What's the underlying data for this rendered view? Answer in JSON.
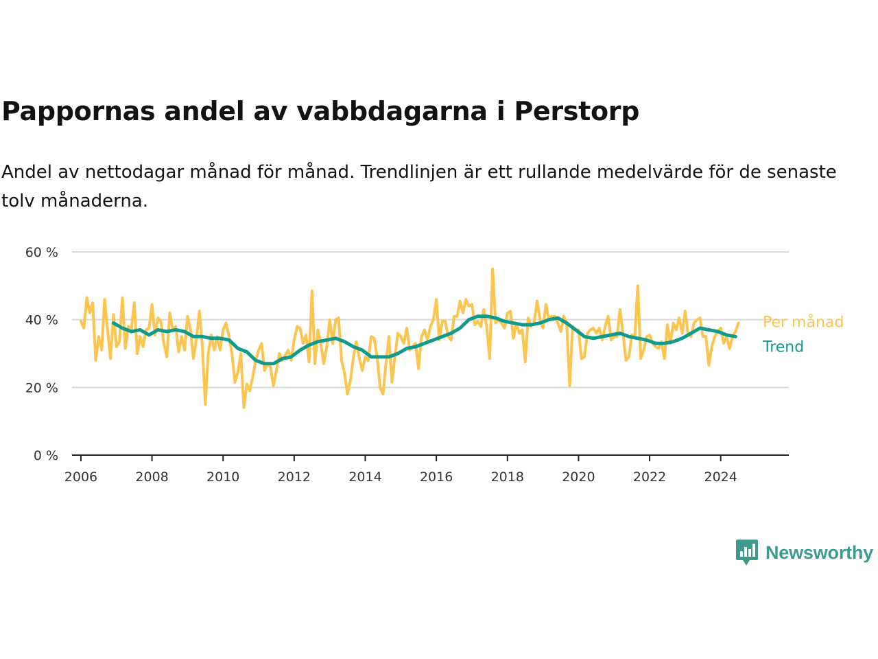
{
  "title": "Pappornas andel av vabbdagarna i Perstorp",
  "subtitle": "Andel av nettodagar månad för månad. Trendlinjen är ett rullande medelvärde för de senaste tolv månaderna.",
  "brand": {
    "name": "Newsworthy",
    "color": "#3f9a8d"
  },
  "colors": {
    "monthly": "#fbc54f",
    "trend": "#0f9a8c",
    "grid": "#d9d9d9",
    "axis": "#222222"
  },
  "chart_data": {
    "type": "line",
    "x_range": [
      "2005-10",
      "2025-12"
    ],
    "ylim": [
      0,
      60
    ],
    "y_ticks": [
      0,
      20,
      40,
      60
    ],
    "y_tick_labels": [
      "0 %",
      "20 %",
      "40 %",
      "60 %"
    ],
    "x_ticks": [
      "2006",
      "2008",
      "2010",
      "2012",
      "2014",
      "2016",
      "2018",
      "2020",
      "2022",
      "2024"
    ],
    "grid": true,
    "series_labels_position": "end-of-line",
    "series": [
      {
        "name": "Per månad",
        "color": "#fbc54f",
        "points": [
          [
            "2006-01",
            39.5
          ],
          [
            "2006-02",
            37.5
          ],
          [
            "2006-03",
            46.5
          ],
          [
            "2006-04",
            42
          ],
          [
            "2006-05",
            45
          ],
          [
            "2006-06",
            28
          ],
          [
            "2006-07",
            35
          ],
          [
            "2006-08",
            31
          ],
          [
            "2006-09",
            46
          ],
          [
            "2006-10",
            37
          ],
          [
            "2006-11",
            28.5
          ],
          [
            "2006-12",
            41.5
          ],
          [
            "2007-01",
            32
          ],
          [
            "2007-02",
            33.5
          ],
          [
            "2007-03",
            46.5
          ],
          [
            "2007-04",
            31.5
          ],
          [
            "2007-05",
            38
          ],
          [
            "2007-06",
            37
          ],
          [
            "2007-07",
            45
          ],
          [
            "2007-08",
            30
          ],
          [
            "2007-09",
            35
          ],
          [
            "2007-10",
            32
          ],
          [
            "2007-11",
            37
          ],
          [
            "2007-12",
            37.5
          ],
          [
            "2008-01",
            44.5
          ],
          [
            "2008-02",
            35.5
          ],
          [
            "2008-03",
            40.5
          ],
          [
            "2008-04",
            39.5
          ],
          [
            "2008-05",
            33
          ],
          [
            "2008-06",
            29
          ],
          [
            "2008-07",
            42
          ],
          [
            "2008-08",
            37
          ],
          [
            "2008-09",
            38
          ],
          [
            "2008-10",
            30.5
          ],
          [
            "2008-11",
            35
          ],
          [
            "2008-12",
            31
          ],
          [
            "2009-01",
            41
          ],
          [
            "2009-02",
            37
          ],
          [
            "2009-03",
            28.5
          ],
          [
            "2009-04",
            34.5
          ],
          [
            "2009-05",
            42.5
          ],
          [
            "2009-06",
            32
          ],
          [
            "2009-07",
            15
          ],
          [
            "2009-08",
            30
          ],
          [
            "2009-09",
            35.5
          ],
          [
            "2009-10",
            31
          ],
          [
            "2009-11",
            35
          ],
          [
            "2009-12",
            31
          ],
          [
            "2010-01",
            37
          ],
          [
            "2010-02",
            39
          ],
          [
            "2010-03",
            35
          ],
          [
            "2010-04",
            30
          ],
          [
            "2010-05",
            21.5
          ],
          [
            "2010-06",
            24.5
          ],
          [
            "2010-07",
            30
          ],
          [
            "2010-08",
            14
          ],
          [
            "2010-09",
            21
          ],
          [
            "2010-10",
            19
          ],
          [
            "2010-11",
            23
          ],
          [
            "2010-12",
            28
          ],
          [
            "2011-01",
            31
          ],
          [
            "2011-02",
            33
          ],
          [
            "2011-03",
            25
          ],
          [
            "2011-04",
            27
          ],
          [
            "2011-05",
            26
          ],
          [
            "2011-06",
            20.5
          ],
          [
            "2011-07",
            25
          ],
          [
            "2011-08",
            30
          ],
          [
            "2011-09",
            28
          ],
          [
            "2011-10",
            29.5
          ],
          [
            "2011-11",
            31
          ],
          [
            "2011-12",
            28
          ],
          [
            "2012-01",
            34
          ],
          [
            "2012-02",
            38
          ],
          [
            "2012-03",
            37.5
          ],
          [
            "2012-04",
            33
          ],
          [
            "2012-05",
            35.5
          ],
          [
            "2012-06",
            27.5
          ],
          [
            "2012-07",
            48.5
          ],
          [
            "2012-08",
            27
          ],
          [
            "2012-09",
            37
          ],
          [
            "2012-10",
            33
          ],
          [
            "2012-11",
            27
          ],
          [
            "2012-12",
            32
          ],
          [
            "2013-01",
            40
          ],
          [
            "2013-02",
            33
          ],
          [
            "2013-03",
            40
          ],
          [
            "2013-04",
            40.5
          ],
          [
            "2013-05",
            28
          ],
          [
            "2013-06",
            24
          ],
          [
            "2013-07",
            18
          ],
          [
            "2013-08",
            22
          ],
          [
            "2013-09",
            29
          ],
          [
            "2013-10",
            33.5
          ],
          [
            "2013-11",
            28.5
          ],
          [
            "2013-12",
            25
          ],
          [
            "2014-01",
            29
          ],
          [
            "2014-02",
            28
          ],
          [
            "2014-03",
            35
          ],
          [
            "2014-04",
            34.5
          ],
          [
            "2014-05",
            29
          ],
          [
            "2014-06",
            20
          ],
          [
            "2014-07",
            18
          ],
          [
            "2014-08",
            27
          ],
          [
            "2014-09",
            35
          ],
          [
            "2014-10",
            21.5
          ],
          [
            "2014-11",
            29
          ],
          [
            "2014-12",
            36
          ],
          [
            "2015-01",
            35
          ],
          [
            "2015-02",
            33
          ],
          [
            "2015-03",
            37.5
          ],
          [
            "2015-04",
            31
          ],
          [
            "2015-05",
            32
          ],
          [
            "2015-06",
            33
          ],
          [
            "2015-07",
            25.5
          ],
          [
            "2015-08",
            35
          ],
          [
            "2015-09",
            37
          ],
          [
            "2015-10",
            34
          ],
          [
            "2015-11",
            38
          ],
          [
            "2015-12",
            40
          ],
          [
            "2016-01",
            46
          ],
          [
            "2016-02",
            34
          ],
          [
            "2016-03",
            39.5
          ],
          [
            "2016-04",
            39.5
          ],
          [
            "2016-05",
            35
          ],
          [
            "2016-06",
            34
          ],
          [
            "2016-07",
            41
          ],
          [
            "2016-08",
            41
          ],
          [
            "2016-09",
            45.5
          ],
          [
            "2016-10",
            42
          ],
          [
            "2016-11",
            46
          ],
          [
            "2016-12",
            44
          ],
          [
            "2017-01",
            44.5
          ],
          [
            "2017-02",
            38.5
          ],
          [
            "2017-03",
            39.5
          ],
          [
            "2017-04",
            38
          ],
          [
            "2017-05",
            43
          ],
          [
            "2017-06",
            38
          ],
          [
            "2017-07",
            28.5
          ],
          [
            "2017-08",
            55
          ],
          [
            "2017-09",
            39
          ],
          [
            "2017-10",
            40
          ],
          [
            "2017-11",
            39
          ],
          [
            "2017-12",
            37.5
          ],
          [
            "2018-01",
            42
          ],
          [
            "2018-02",
            42.5
          ],
          [
            "2018-03",
            34.5
          ],
          [
            "2018-04",
            39
          ],
          [
            "2018-05",
            36
          ],
          [
            "2018-06",
            37
          ],
          [
            "2018-07",
            27.5
          ],
          [
            "2018-08",
            40.5
          ],
          [
            "2018-09",
            38
          ],
          [
            "2018-10",
            39
          ],
          [
            "2018-11",
            45.5
          ],
          [
            "2018-12",
            40
          ],
          [
            "2019-01",
            37.5
          ],
          [
            "2019-02",
            44.5
          ],
          [
            "2019-03",
            40
          ],
          [
            "2019-04",
            41
          ],
          [
            "2019-05",
            41
          ],
          [
            "2019-06",
            39
          ],
          [
            "2019-07",
            36.5
          ],
          [
            "2019-08",
            41
          ],
          [
            "2019-09",
            39
          ],
          [
            "2019-10",
            20.5
          ],
          [
            "2019-11",
            38
          ],
          [
            "2019-12",
            37
          ],
          [
            "2020-01",
            37
          ],
          [
            "2020-02",
            28.5
          ],
          [
            "2020-03",
            29
          ],
          [
            "2020-04",
            36
          ],
          [
            "2020-05",
            37
          ],
          [
            "2020-06",
            37.5
          ],
          [
            "2020-07",
            36
          ],
          [
            "2020-08",
            37.5
          ],
          [
            "2020-09",
            34
          ],
          [
            "2020-10",
            38
          ],
          [
            "2020-11",
            41
          ],
          [
            "2020-12",
            34
          ],
          [
            "2021-01",
            35
          ],
          [
            "2021-02",
            35
          ],
          [
            "2021-03",
            43
          ],
          [
            "2021-04",
            36
          ],
          [
            "2021-05",
            28
          ],
          [
            "2021-06",
            29
          ],
          [
            "2021-07",
            35.5
          ],
          [
            "2021-08",
            35
          ],
          [
            "2021-09",
            50
          ],
          [
            "2021-10",
            28.5
          ],
          [
            "2021-11",
            31
          ],
          [
            "2021-12",
            35
          ],
          [
            "2022-01",
            35.5
          ],
          [
            "2022-02",
            33
          ],
          [
            "2022-03",
            32
          ],
          [
            "2022-04",
            31.5
          ],
          [
            "2022-05",
            33.5
          ],
          [
            "2022-06",
            28.5
          ],
          [
            "2022-07",
            38.5
          ],
          [
            "2022-08",
            33
          ],
          [
            "2022-09",
            39
          ],
          [
            "2022-10",
            37
          ],
          [
            "2022-11",
            40.5
          ],
          [
            "2022-12",
            36
          ],
          [
            "2023-01",
            42.5
          ],
          [
            "2023-02",
            35.5
          ],
          [
            "2023-03",
            35
          ],
          [
            "2023-04",
            39
          ],
          [
            "2023-05",
            40
          ],
          [
            "2023-06",
            40.5
          ],
          [
            "2023-07",
            35
          ],
          [
            "2023-08",
            35
          ],
          [
            "2023-09",
            26.5
          ],
          [
            "2023-10",
            32
          ],
          [
            "2023-11",
            35
          ],
          [
            "2023-12",
            36.5
          ],
          [
            "2024-01",
            37.5
          ],
          [
            "2024-02",
            33
          ],
          [
            "2024-03",
            35
          ],
          [
            "2024-04",
            31.5
          ],
          [
            "2024-05",
            35
          ],
          [
            "2024-06",
            36.5
          ],
          [
            "2024-07",
            39
          ]
        ]
      },
      {
        "name": "Trend",
        "color": "#0f9a8c",
        "points": [
          [
            "2006-12",
            39
          ],
          [
            "2007-03",
            37.5
          ],
          [
            "2007-06",
            36.5
          ],
          [
            "2007-09",
            37
          ],
          [
            "2007-12",
            35.5
          ],
          [
            "2008-03",
            37
          ],
          [
            "2008-06",
            36.5
          ],
          [
            "2008-09",
            37
          ],
          [
            "2008-12",
            36.5
          ],
          [
            "2009-03",
            35
          ],
          [
            "2009-06",
            35
          ],
          [
            "2009-09",
            34.5
          ],
          [
            "2009-12",
            34.5
          ],
          [
            "2010-03",
            34
          ],
          [
            "2010-06",
            31.5
          ],
          [
            "2010-09",
            30.5
          ],
          [
            "2010-12",
            28
          ],
          [
            "2011-03",
            27
          ],
          [
            "2011-06",
            27
          ],
          [
            "2011-09",
            28.5
          ],
          [
            "2011-12",
            29
          ],
          [
            "2012-03",
            31
          ],
          [
            "2012-06",
            32.5
          ],
          [
            "2012-09",
            33.5
          ],
          [
            "2012-12",
            34
          ],
          [
            "2013-03",
            34.5
          ],
          [
            "2013-06",
            33.5
          ],
          [
            "2013-09",
            32
          ],
          [
            "2013-12",
            31
          ],
          [
            "2014-03",
            29
          ],
          [
            "2014-06",
            29
          ],
          [
            "2014-09",
            29
          ],
          [
            "2014-12",
            30
          ],
          [
            "2015-03",
            31.5
          ],
          [
            "2015-06",
            32
          ],
          [
            "2015-09",
            33
          ],
          [
            "2015-12",
            34
          ],
          [
            "2016-03",
            35
          ],
          [
            "2016-06",
            36
          ],
          [
            "2016-09",
            37.5
          ],
          [
            "2016-12",
            40
          ],
          [
            "2017-03",
            41
          ],
          [
            "2017-06",
            41
          ],
          [
            "2017-09",
            40.5
          ],
          [
            "2017-12",
            39.5
          ],
          [
            "2018-03",
            39
          ],
          [
            "2018-06",
            38.5
          ],
          [
            "2018-09",
            38.5
          ],
          [
            "2018-12",
            39
          ],
          [
            "2019-03",
            40
          ],
          [
            "2019-06",
            40.5
          ],
          [
            "2019-09",
            39
          ],
          [
            "2019-12",
            37
          ],
          [
            "2020-03",
            35
          ],
          [
            "2020-06",
            34.5
          ],
          [
            "2020-09",
            35
          ],
          [
            "2020-12",
            35.5
          ],
          [
            "2021-03",
            36
          ],
          [
            "2021-06",
            35
          ],
          [
            "2021-09",
            34.5
          ],
          [
            "2021-12",
            34
          ],
          [
            "2022-03",
            33
          ],
          [
            "2022-06",
            33
          ],
          [
            "2022-09",
            33.5
          ],
          [
            "2022-12",
            34.5
          ],
          [
            "2023-03",
            36
          ],
          [
            "2023-06",
            37.5
          ],
          [
            "2023-09",
            37
          ],
          [
            "2023-12",
            36.5
          ],
          [
            "2024-03",
            35.5
          ],
          [
            "2024-06",
            35
          ]
        ]
      }
    ]
  }
}
